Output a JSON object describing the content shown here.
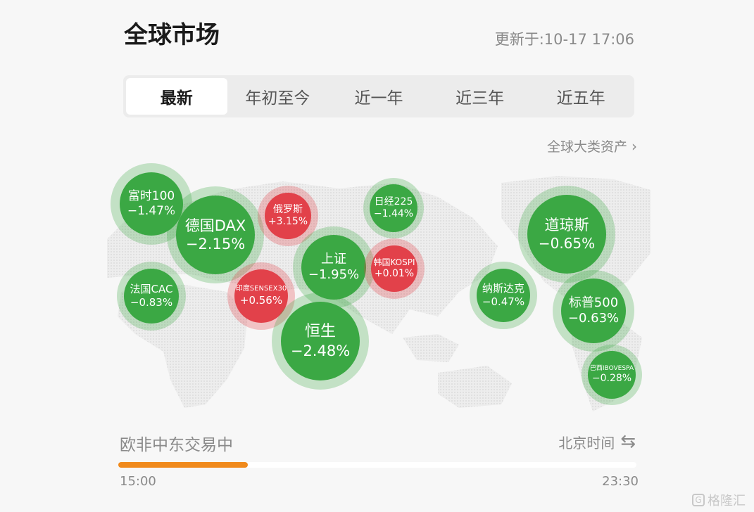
{
  "header": {
    "title": "全球市场",
    "updated": "更新于:10-17 17:06"
  },
  "tabs": [
    {
      "label": "最新",
      "active": true
    },
    {
      "label": "年初至今",
      "active": false
    },
    {
      "label": "近一年",
      "active": false
    },
    {
      "label": "近三年",
      "active": false
    },
    {
      "label": "近五年",
      "active": false
    }
  ],
  "assets_link": {
    "label": "全球大类资产"
  },
  "markets": [
    {
      "name": "富时100",
      "change": "−1.47%",
      "trend": "down"
    },
    {
      "name": "德国DAX",
      "change": "−2.15%",
      "trend": "down"
    },
    {
      "name": "俄罗斯",
      "change": "+3.15%",
      "trend": "up"
    },
    {
      "name": "日经225",
      "change": "−1.44%",
      "trend": "down"
    },
    {
      "name": "上证",
      "change": "−1.95%",
      "trend": "down"
    },
    {
      "name": "韩国KOSPI",
      "change": "+0.01%",
      "trend": "up"
    },
    {
      "name": "法国CAC",
      "change": "−0.83%",
      "trend": "down"
    },
    {
      "name": "印度SENSEX30",
      "change": "+0.56%",
      "trend": "up"
    },
    {
      "name": "恒生",
      "change": "−2.48%",
      "trend": "down"
    },
    {
      "name": "道琼斯",
      "change": "−0.65%",
      "trend": "down"
    },
    {
      "name": "纳斯达克",
      "change": "−0.47%",
      "trend": "down"
    },
    {
      "name": "标普500",
      "change": "−0.63%",
      "trend": "down"
    },
    {
      "name": "巴西IBOVESPA",
      "change": "−0.28%",
      "trend": "down"
    }
  ],
  "session": {
    "status": "欧非中东交易中",
    "timezone_label": "北京时间",
    "start_time": "15:00",
    "end_time": "23:30",
    "progress_percent": 25
  },
  "colors": {
    "up": "#e2414a",
    "down": "#3ba844",
    "progress": "#f08a1c"
  },
  "icons": {
    "assets_link": "chevron-right-icon",
    "timezone": "swap-arrows-icon"
  },
  "watermark": {
    "text": "格隆汇"
  }
}
